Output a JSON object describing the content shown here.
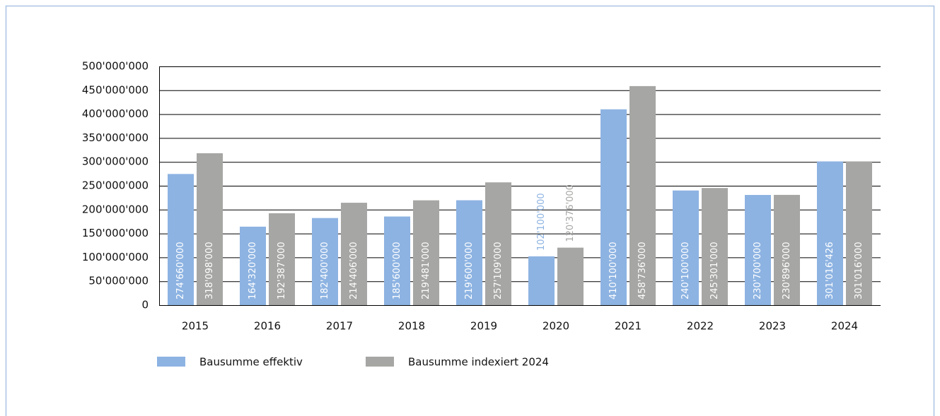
{
  "chart_data": {
    "type": "bar",
    "categories": [
      "2015",
      "2016",
      "2017",
      "2018",
      "2019",
      "2020",
      "2021",
      "2022",
      "2023",
      "2024"
    ],
    "series": [
      {
        "name": "Bausumme effektiv",
        "color": "#8db3e2",
        "values": [
          274660000,
          164320000,
          182400000,
          185600000,
          219600000,
          102100000,
          410100000,
          240100000,
          230700000,
          301016426
        ],
        "value_labels": [
          "274'660'000",
          "164'320'000",
          "182'400'000",
          "185'600'000",
          "219'600'000",
          "102'100'000",
          "410'100'000",
          "240'100'000",
          "230'700'000",
          "301'016'426"
        ]
      },
      {
        "name": "Bausumme indexiert 2024",
        "color": "#a6a6a4",
        "values": [
          318098000,
          192387000,
          214406000,
          219481000,
          257109000,
          120376000,
          458736000,
          245301000,
          230896000,
          301016000
        ],
        "value_labels": [
          "318'098'000",
          "192'387'000",
          "214'406'000",
          "219'481'000",
          "257'109'000",
          "120'376'000",
          "458'736'000",
          "245'301'000",
          "230'896'000",
          "301'016'000"
        ]
      }
    ],
    "ylim": [
      0,
      500000000
    ],
    "yticks": [
      0,
      {
        "value": 50000000,
        "label": "50'000'000"
      },
      {
        "value": 100000000,
        "label": "100'000'000"
      },
      {
        "value": 150000000,
        "label": "150'000'000"
      },
      {
        "value": 200000000,
        "label": "200'000'000"
      },
      {
        "value": 250000000,
        "label": "250'000'000"
      },
      {
        "value": 300000000,
        "label": "300'000'000"
      },
      {
        "value": 350000000,
        "label": "350'000'000"
      },
      {
        "value": 400000000,
        "label": "400'000'000"
      },
      {
        "value": 450000000,
        "label": "450'000'000"
      },
      {
        "value": 500000000,
        "label": "500'000'000"
      }
    ],
    "grid": true,
    "legend": "bottom"
  }
}
